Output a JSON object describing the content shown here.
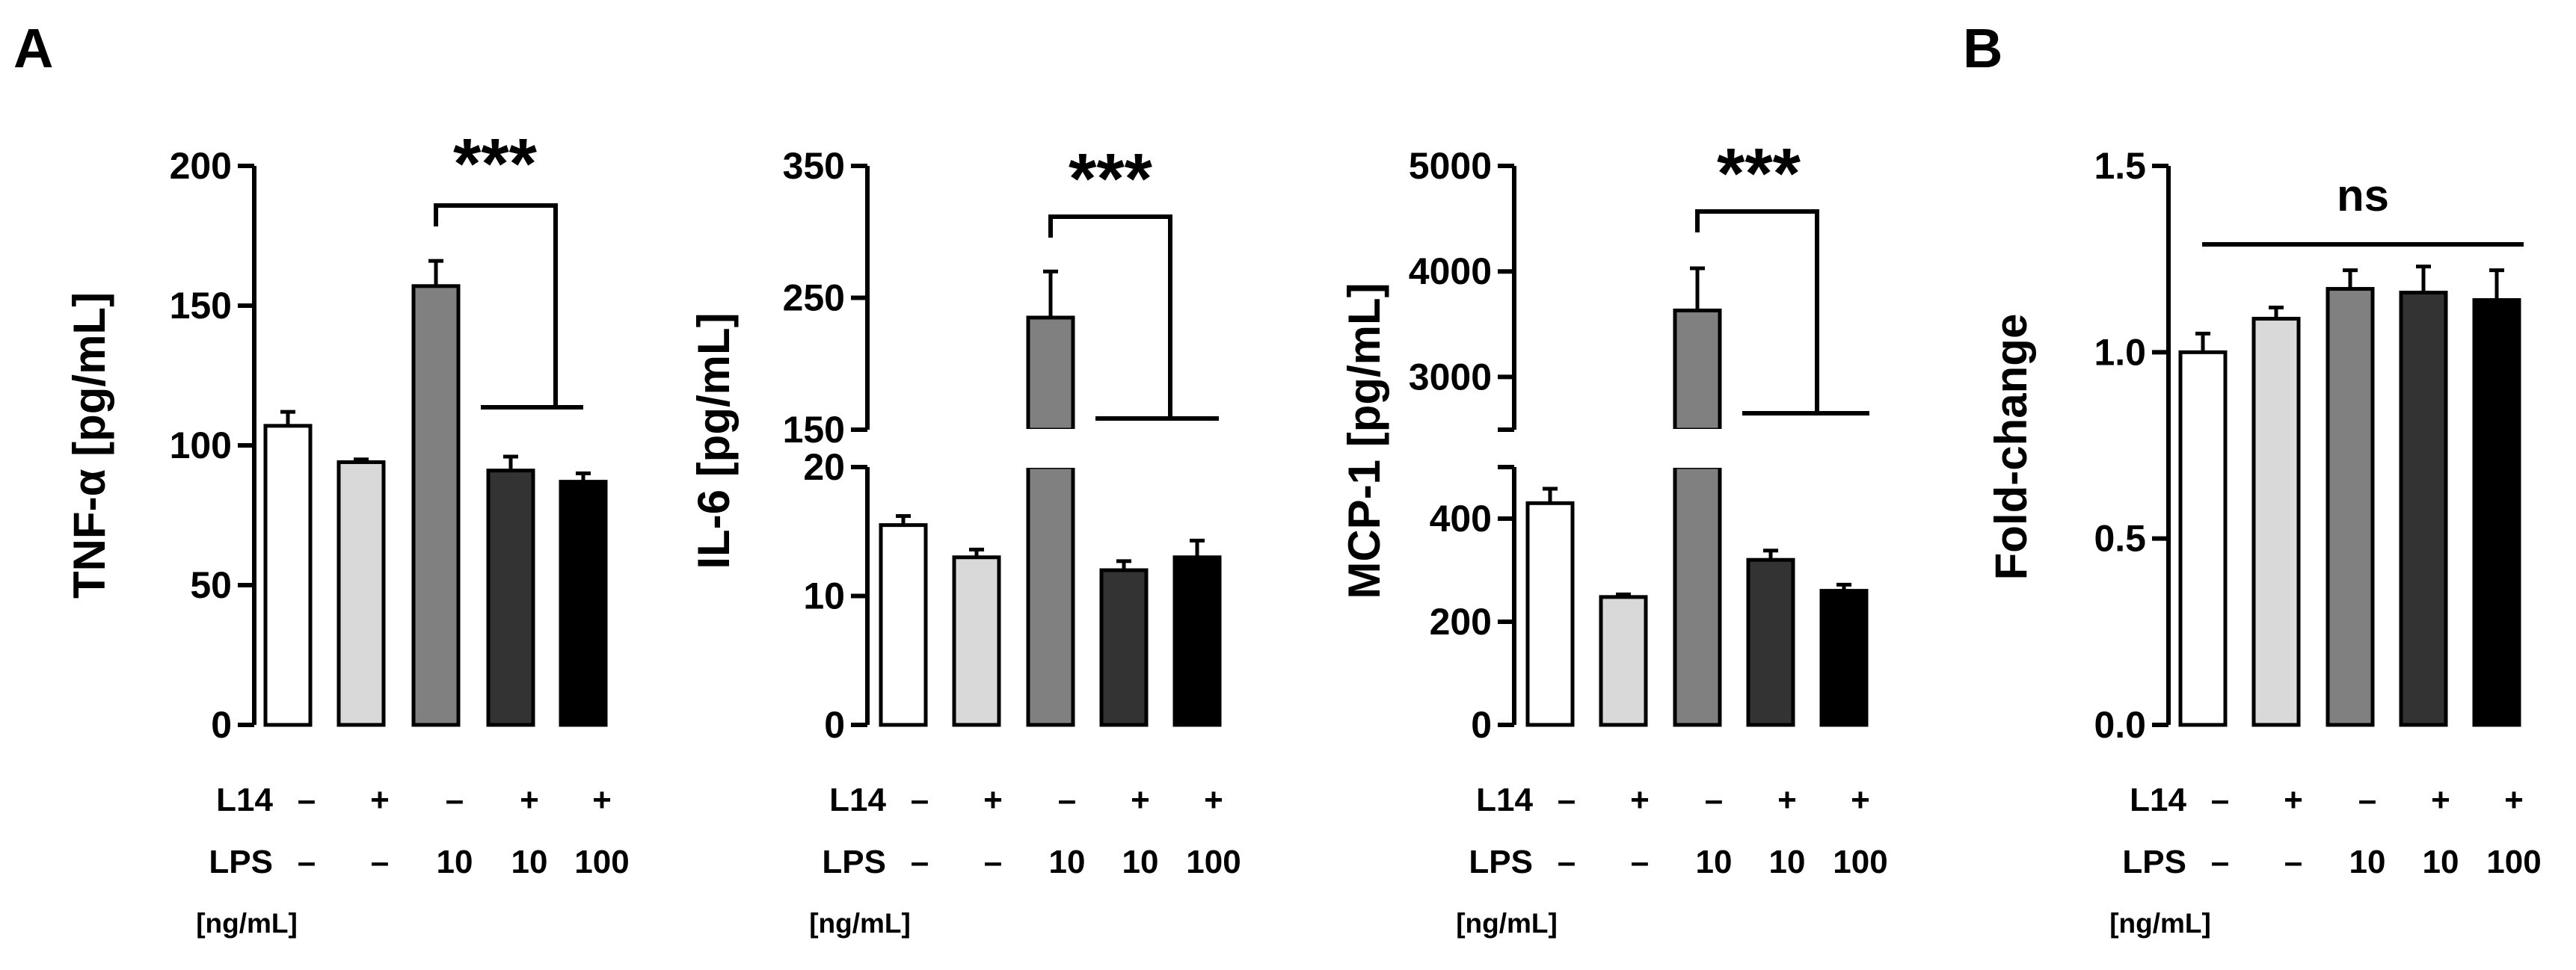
{
  "panels": {
    "A": "A",
    "B": "B"
  },
  "conditions": {
    "l14_label": "L14",
    "lps_label": "LPS",
    "lps_unit": "[ng/mL]",
    "l14": [
      "–",
      "+",
      "–",
      "+",
      "+"
    ],
    "lps": [
      "–",
      "–",
      "10",
      "10",
      "100"
    ]
  },
  "bar_colors": [
    "#ffffff",
    "#d9d9d9",
    "#808080",
    "#333333",
    "#000000"
  ],
  "chart_data": [
    {
      "id": "tnf",
      "type": "bar",
      "ylabel": "TNF-α [pg/mL]",
      "categories": [
        "L14 – / LPS –",
        "L14 + / LPS –",
        "L14 – / LPS 10",
        "L14 + / LPS 10",
        "L14 + / LPS 100"
      ],
      "values": [
        107,
        94,
        157,
        91,
        87
      ],
      "errors": [
        5,
        1,
        9,
        5,
        3
      ],
      "ylim": [
        0,
        200
      ],
      "yticks": [
        "0",
        "50",
        "100",
        "150",
        "200"
      ],
      "significance": "***"
    },
    {
      "id": "il6",
      "type": "bar",
      "ylabel": "IL-6 [pg/mL]",
      "categories": [
        "L14 – / LPS –",
        "L14 + / LPS –",
        "L14 – / LPS 10",
        "L14 + / LPS 10",
        "L14 + / LPS 100"
      ],
      "values": [
        15.5,
        13,
        235,
        12,
        13
      ],
      "errors": [
        0.7,
        0.6,
        35,
        0.7,
        1.3
      ],
      "ylim": [
        0,
        350
      ],
      "axis_break": [
        20,
        150
      ],
      "yticks_lower": [
        "0",
        "10",
        "20"
      ],
      "yticks_upper": [
        "150",
        "250",
        "350"
      ],
      "significance": "***"
    },
    {
      "id": "mcp1",
      "type": "bar",
      "ylabel": "MCP-1 [pg/mL]",
      "categories": [
        "L14 – / LPS –",
        "L14 + / LPS –",
        "L14 – / LPS 10",
        "L14 + / LPS 10",
        "L14 + / LPS 100"
      ],
      "values": [
        430,
        248,
        3630,
        320,
        260
      ],
      "errors": [
        28,
        5,
        400,
        18,
        12
      ],
      "ylim": [
        0,
        5000
      ],
      "axis_break": [
        500,
        2500
      ],
      "yticks_lower": [
        "0",
        "200",
        "400"
      ],
      "yticks_upper": [
        "3000",
        "4000",
        "5000"
      ],
      "significance": "***"
    },
    {
      "id": "fold",
      "type": "bar",
      "ylabel": "Fold-change",
      "categories": [
        "L14 – / LPS –",
        "L14 + / LPS –",
        "L14 – / LPS 10",
        "L14 + / LPS 10",
        "L14 + / LPS 100"
      ],
      "values": [
        1.0,
        1.09,
        1.17,
        1.16,
        1.14
      ],
      "errors": [
        0.05,
        0.03,
        0.05,
        0.07,
        0.08
      ],
      "ylim": [
        0,
        1.5
      ],
      "yticks": [
        "0.0",
        "0.5",
        "1.0",
        "1.5"
      ],
      "significance": "ns"
    }
  ]
}
